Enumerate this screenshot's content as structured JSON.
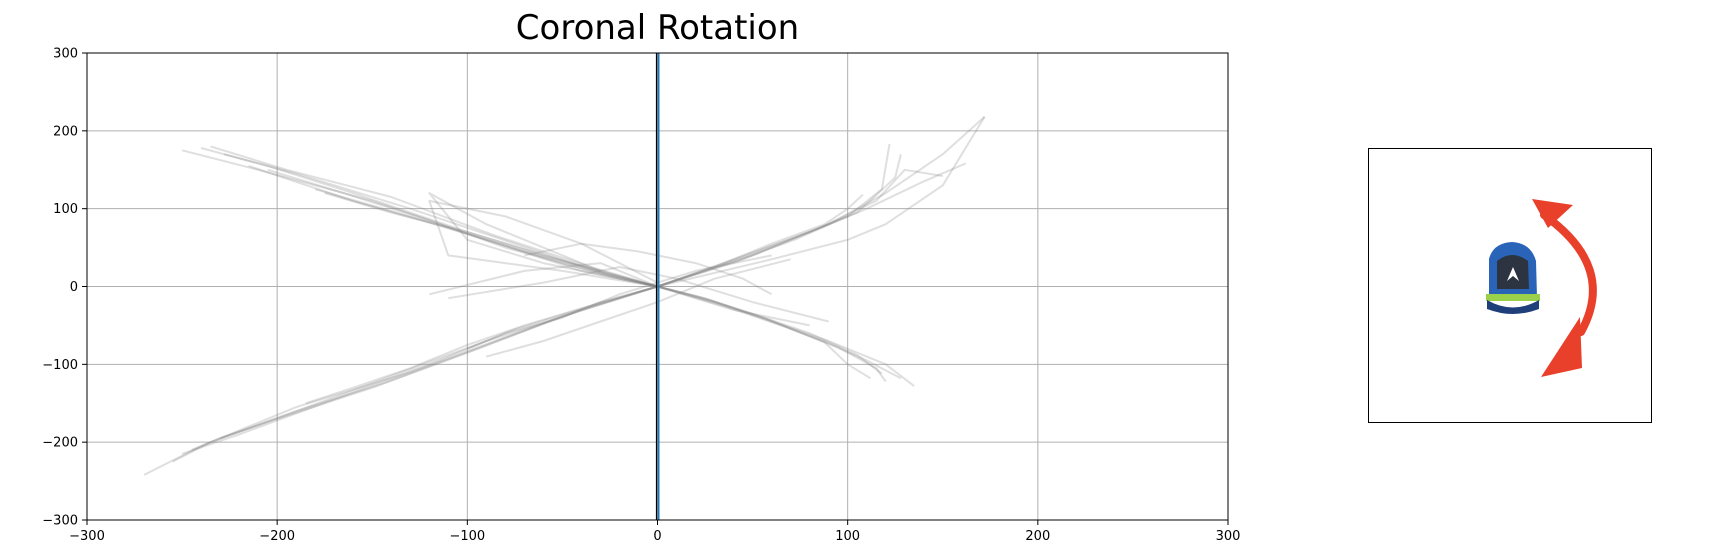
{
  "chart_data": {
    "type": "line",
    "title": "Coronal Rotation",
    "xlabel": "",
    "ylabel": "",
    "xlim": [
      -300,
      300
    ],
    "ylim": [
      -300,
      300
    ],
    "xticks": [
      -300,
      -200,
      -100,
      0,
      100,
      200,
      300
    ],
    "yticks": [
      -300,
      -200,
      -100,
      0,
      100,
      200,
      300
    ],
    "tick_labels_x": [
      "−300",
      "−200",
      "−100",
      "0",
      "100",
      "200",
      "300"
    ],
    "tick_labels_y": [
      "−300",
      "−200",
      "−100",
      "0",
      "100",
      "200",
      "300"
    ],
    "grid": true,
    "reference_line": {
      "x": 0,
      "color": "#1f77b4"
    },
    "trace_color": "#808080",
    "series": [
      {
        "x": [
          0,
          -40,
          -90,
          -150,
          -210,
          -250
        ],
        "y": [
          0,
          20,
          60,
          110,
          150,
          175
        ]
      },
      {
        "x": [
          0,
          -35,
          -85,
          -140,
          -195,
          -235
        ],
        "y": [
          0,
          25,
          65,
          115,
          150,
          180
        ]
      },
      {
        "x": [
          0,
          -30,
          -75,
          -130,
          -190,
          -228
        ],
        "y": [
          0,
          18,
          55,
          100,
          145,
          170
        ]
      },
      {
        "x": [
          0,
          -45,
          -100,
          -160,
          -205,
          -240
        ],
        "y": [
          0,
          30,
          70,
          120,
          155,
          178
        ]
      },
      {
        "x": [
          0,
          -38,
          -80,
          -120,
          -165,
          -205
        ],
        "y": [
          0,
          22,
          50,
          85,
          120,
          150
        ]
      },
      {
        "x": [
          0,
          -25,
          -60,
          -100,
          -140,
          -175
        ],
        "y": [
          0,
          15,
          40,
          70,
          95,
          120
        ]
      },
      {
        "x": [
          0,
          -30,
          -70,
          -110,
          -160,
          -215
        ],
        "y": [
          0,
          20,
          45,
          75,
          110,
          155
        ]
      },
      {
        "x": [
          0,
          -20,
          -50,
          -90,
          -130,
          -180
        ],
        "y": [
          0,
          10,
          30,
          60,
          90,
          125
        ]
      },
      {
        "x": [
          0,
          30,
          60,
          90,
          120,
          135
        ],
        "y": [
          0,
          -20,
          -45,
          -70,
          -100,
          -128
        ]
      },
      {
        "x": [
          0,
          25,
          55,
          85,
          110,
          128
        ],
        "y": [
          0,
          -15,
          -40,
          -68,
          -95,
          -118
        ]
      },
      {
        "x": [
          0,
          35,
          65,
          95,
          115,
          120
        ],
        "y": [
          0,
          -25,
          -50,
          -78,
          -105,
          -122
        ]
      },
      {
        "x": [
          0,
          20,
          50,
          80,
          105,
          118
        ],
        "y": [
          0,
          -12,
          -35,
          -60,
          -88,
          -112
        ]
      },
      {
        "x": [
          0,
          28,
          58,
          88,
          100,
          112
        ],
        "y": [
          0,
          -18,
          -42,
          -72,
          -100,
          -118
        ]
      },
      {
        "x": [
          0,
          50,
          90,
          120,
          150,
          172
        ],
        "y": [
          0,
          40,
          80,
          120,
          170,
          218
        ]
      },
      {
        "x": [
          0,
          40,
          80,
          110,
          140,
          162
        ],
        "y": [
          0,
          35,
          70,
          100,
          135,
          158
        ]
      },
      {
        "x": [
          0,
          45,
          85,
          115,
          130,
          150
        ],
        "y": [
          0,
          38,
          75,
          110,
          150,
          142
        ]
      },
      {
        "x": [
          0,
          42,
          78,
          105,
          125,
          128
        ],
        "y": [
          0,
          32,
          68,
          95,
          140,
          170
        ]
      },
      {
        "x": [
          0,
          38,
          72,
          100,
          118,
          122
        ],
        "y": [
          0,
          30,
          60,
          90,
          125,
          183
        ]
      },
      {
        "x": [
          0,
          30,
          60,
          88,
          100,
          108
        ],
        "y": [
          0,
          25,
          55,
          80,
          100,
          118
        ]
      },
      {
        "x": [
          0,
          -40,
          -80,
          -130,
          -190,
          -240,
          -270
        ],
        "y": [
          0,
          -30,
          -65,
          -110,
          -155,
          -205,
          -242
        ]
      },
      {
        "x": [
          0,
          -45,
          -90,
          -140,
          -195,
          -235,
          -255
        ],
        "y": [
          0,
          -35,
          -70,
          -115,
          -165,
          -200,
          -225
        ]
      },
      {
        "x": [
          0,
          -35,
          -75,
          -120,
          -170,
          -220,
          -250
        ],
        "y": [
          0,
          -25,
          -55,
          -100,
          -145,
          -190,
          -215
        ]
      },
      {
        "x": [
          0,
          -50,
          -95,
          -145,
          -190,
          -230,
          -245
        ],
        "y": [
          0,
          -38,
          -80,
          -125,
          -160,
          -195,
          -210
        ]
      },
      {
        "x": [
          0,
          -30,
          -60,
          -100,
          -150,
          -200,
          -230
        ],
        "y": [
          0,
          -20,
          -48,
          -85,
          -130,
          -170,
          -195
        ]
      },
      {
        "x": [
          0,
          -40,
          -70,
          -100,
          -130,
          -160,
          -185
        ],
        "y": [
          0,
          -28,
          -50,
          -75,
          -105,
          -130,
          -150
        ]
      },
      {
        "x": [
          0,
          60,
          100,
          120,
          150,
          172
        ],
        "y": [
          0,
          35,
          60,
          80,
          130,
          218
        ]
      },
      {
        "x": [
          0,
          -60,
          -100,
          -120,
          -90,
          -60,
          -30
        ],
        "y": [
          0,
          30,
          60,
          120,
          80,
          50,
          20
        ]
      },
      {
        "x": [
          0,
          -50,
          -110,
          -120,
          -80,
          -40,
          0
        ],
        "y": [
          0,
          20,
          40,
          110,
          90,
          55,
          5
        ]
      },
      {
        "x": [
          -120,
          -70,
          -30,
          0,
          40,
          80
        ],
        "y": [
          -10,
          20,
          30,
          0,
          -30,
          -50
        ]
      },
      {
        "x": [
          -110,
          -60,
          -20,
          10,
          50,
          90
        ],
        "y": [
          -15,
          5,
          25,
          10,
          -20,
          -45
        ]
      },
      {
        "x": [
          -100,
          -80,
          -50,
          -20,
          20,
          60
        ],
        "y": [
          -80,
          -60,
          -40,
          -10,
          20,
          40
        ]
      },
      {
        "x": [
          -90,
          -60,
          -30,
          0,
          30,
          70
        ],
        "y": [
          -90,
          -70,
          -45,
          -20,
          10,
          35
        ]
      },
      {
        "x": [
          -70,
          -40,
          -10,
          20,
          45,
          60
        ],
        "y": [
          40,
          55,
          45,
          30,
          10,
          -10
        ]
      }
    ]
  },
  "inset": {
    "image_name": "shoe-heel-image",
    "arrow_name": "rotation-arrow-icon",
    "arrow_color": "#e8402a",
    "shoe_colors": {
      "upper": "#2a64b8",
      "dark": "#2b3440",
      "sole": "#9ad04a",
      "outsole": "#1f3f7a"
    }
  }
}
